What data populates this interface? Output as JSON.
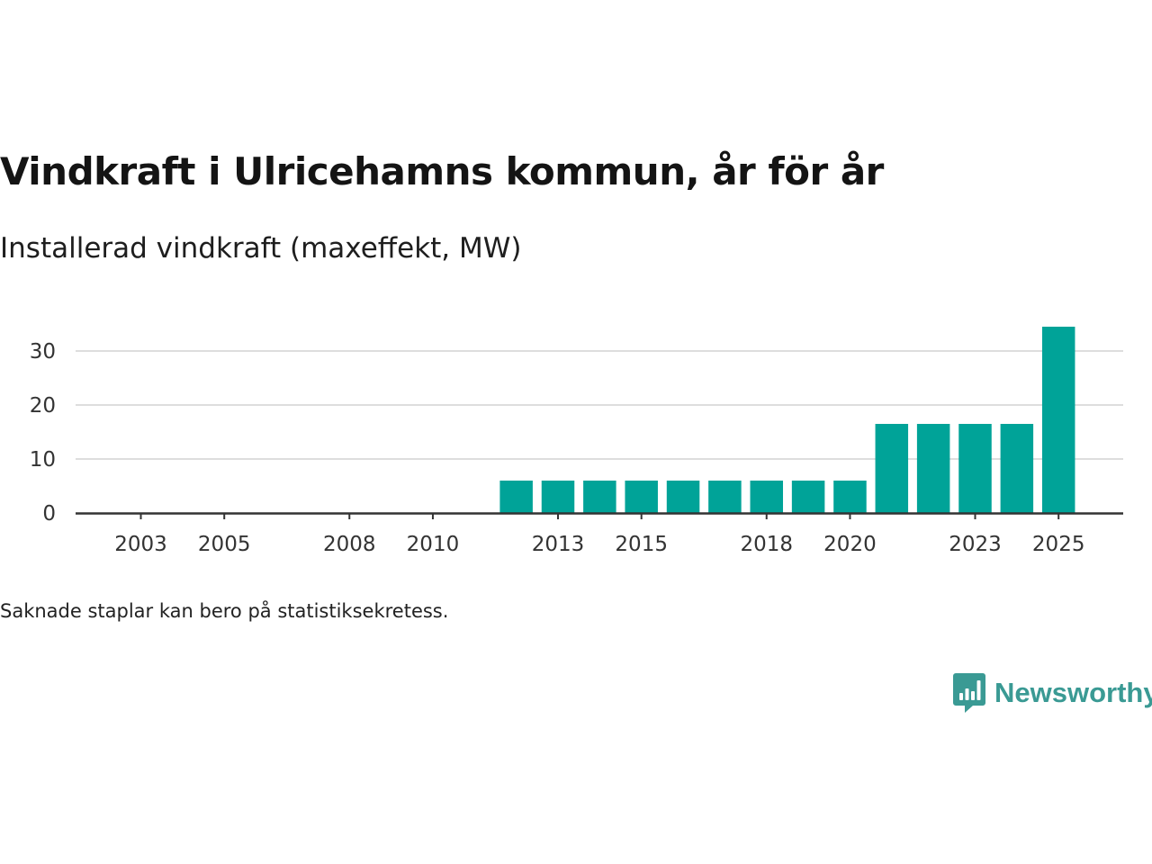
{
  "title": "Vindkraft i Ulricehamns kommun, år för år",
  "subtitle": "Installerad vindkraft (maxeffekt, MW)",
  "footnote": "Saknade staplar kan bero på statistiksekretess.",
  "brand": {
    "name": "Newsworthy",
    "logo_icon": "bar-chart-speech-bubble-icon",
    "color": "#3a9a94"
  },
  "colors": {
    "bar": "#00a398",
    "grid": "#dddddd",
    "axis": "#333333"
  },
  "chart_data": {
    "type": "bar",
    "x": [
      2003,
      2004,
      2005,
      2006,
      2007,
      2008,
      2009,
      2010,
      2011,
      2012,
      2013,
      2014,
      2015,
      2016,
      2017,
      2018,
      2019,
      2020,
      2021,
      2022,
      2023,
      2024,
      2025
    ],
    "values": [
      0,
      0,
      0,
      0,
      0,
      0,
      0,
      0,
      0,
      6,
      6,
      6,
      6,
      6,
      6,
      6,
      6,
      6,
      16.5,
      16.5,
      16.5,
      16.5,
      34.5
    ],
    "x_ticks": [
      2003,
      2005,
      2008,
      2010,
      2013,
      2015,
      2018,
      2020,
      2023,
      2025
    ],
    "y_ticks": [
      0,
      10,
      20,
      30
    ],
    "ylim": [
      0,
      35
    ],
    "grid": true,
    "legend": false
  }
}
